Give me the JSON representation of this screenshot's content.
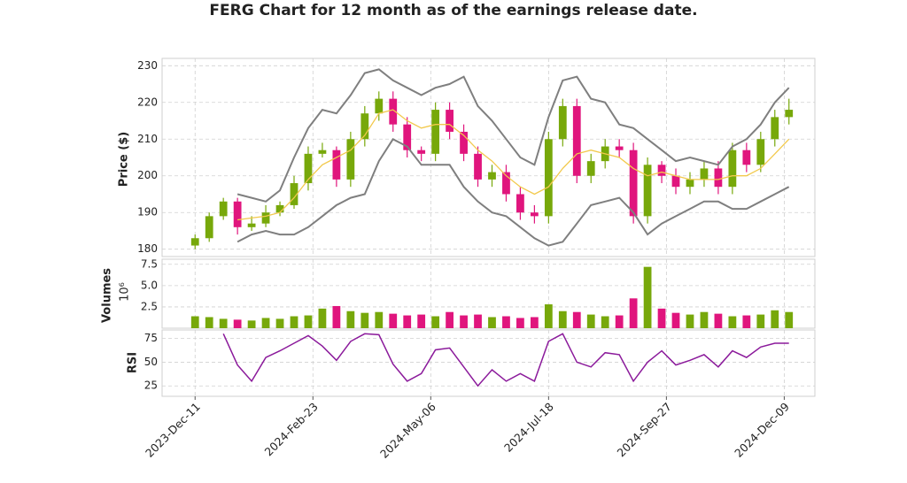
{
  "chart_data": {
    "type": "candlestick",
    "title": "FERG Chart for 12 month as of the earnings release date.",
    "ylabel": "Price ($)",
    "volume_label": "Volumes",
    "volume_multiplier": "10⁶",
    "rsi_label": "RSI",
    "up_color": "#77a80a",
    "down_color": "#e0157d",
    "ma_color": "#f2c94c",
    "band_color": "#7f7f7f",
    "rsi_color": "#8b1a9b",
    "grid": true,
    "x": [
      0,
      6,
      12,
      18,
      24,
      30,
      36,
      42,
      48,
      54,
      60,
      66,
      72,
      78,
      84,
      90,
      96,
      102,
      108,
      114,
      120,
      126,
      132,
      138,
      144,
      150,
      156,
      162,
      168,
      174,
      180,
      186,
      192,
      198,
      204,
      210,
      216,
      222,
      228,
      234,
      240,
      246,
      252
    ],
    "xlim": [
      -14,
      263
    ],
    "xticks": [
      {
        "value": 0,
        "label": "2023-Dec-11"
      },
      {
        "value": 50,
        "label": "2024-Feb-23"
      },
      {
        "value": 100,
        "label": "2024-May-06"
      },
      {
        "value": 150,
        "label": "2024-Jul-18"
      },
      {
        "value": 200,
        "label": "2024-Sep-27"
      },
      {
        "value": 250,
        "label": "2024-Dec-09"
      }
    ],
    "open": [
      181,
      183,
      189,
      193,
      186,
      187,
      190,
      192,
      198,
      206,
      207,
      199,
      210,
      217,
      221,
      214,
      207,
      206,
      218,
      212,
      206,
      199,
      201,
      195,
      190,
      189,
      210,
      219,
      200,
      204,
      208,
      207,
      189,
      203,
      200,
      197,
      199,
      202,
      197,
      207,
      203,
      210,
      216
    ],
    "high": [
      184,
      190,
      194,
      194,
      189,
      192,
      193,
      200,
      208,
      209,
      208,
      212,
      219,
      223,
      223,
      216,
      208,
      220,
      220,
      214,
      208,
      203,
      203,
      197,
      192,
      212,
      221,
      221,
      206,
      210,
      210,
      209,
      205,
      204,
      202,
      201,
      204,
      204,
      209,
      209,
      212,
      218,
      221
    ],
    "low": [
      180,
      182,
      188,
      184,
      185,
      186,
      189,
      191,
      196,
      205,
      197,
      197,
      208,
      215,
      212,
      205,
      204,
      204,
      210,
      204,
      197,
      197,
      193,
      188,
      187,
      187,
      208,
      198,
      198,
      202,
      205,
      187,
      187,
      198,
      195,
      195,
      197,
      195,
      195,
      201,
      201,
      208,
      214
    ],
    "close": [
      183,
      189,
      193,
      186,
      187,
      190,
      192,
      198,
      206,
      207,
      199,
      210,
      217,
      221,
      214,
      207,
      206,
      218,
      212,
      206,
      199,
      201,
      195,
      190,
      189,
      210,
      219,
      200,
      204,
      208,
      207,
      189,
      203,
      200,
      197,
      199,
      202,
      197,
      207,
      203,
      210,
      216,
      218
    ],
    "ma": [
      null,
      null,
      null,
      188,
      188.5,
      189,
      190,
      194,
      199,
      203,
      205,
      207,
      211,
      217,
      218,
      215,
      213,
      214,
      214,
      211,
      207,
      204,
      200,
      197,
      195,
      197,
      202,
      206,
      207,
      206,
      205,
      202,
      200,
      201,
      200,
      199,
      199,
      199,
      200,
      200,
      202,
      206,
      210
    ],
    "bb_upper": [
      null,
      null,
      null,
      195,
      194,
      193,
      196,
      205,
      213,
      218,
      217,
      222,
      228,
      229,
      226,
      224,
      222,
      224,
      225,
      227,
      219,
      215,
      210,
      205,
      203,
      216,
      226,
      227,
      221,
      220,
      214,
      213,
      210,
      207,
      204,
      205,
      204,
      203,
      208,
      210,
      214,
      220,
      224
    ],
    "bb_lower": [
      null,
      null,
      null,
      182,
      184,
      185,
      184,
      184,
      186,
      189,
      192,
      194,
      195,
      204,
      210,
      208,
      203,
      203,
      203,
      197,
      193,
      190,
      189,
      186,
      183,
      181,
      182,
      187,
      192,
      193,
      194,
      190,
      184,
      187,
      189,
      191,
      193,
      193,
      191,
      191,
      193,
      195,
      197
    ],
    "ylim": [
      178,
      232
    ],
    "yticks": [
      180,
      190,
      200,
      210,
      220,
      230
    ],
    "volume": [
      1.4,
      1.3,
      1.1,
      1.0,
      0.9,
      1.2,
      1.1,
      1.4,
      1.5,
      2.3,
      2.6,
      2.0,
      1.8,
      1.9,
      1.7,
      1.5,
      1.6,
      1.4,
      1.9,
      1.5,
      1.6,
      1.3,
      1.4,
      1.2,
      1.3,
      2.8,
      2.0,
      1.9,
      1.6,
      1.4,
      1.5,
      3.5,
      7.2,
      2.3,
      1.8,
      1.6,
      1.9,
      1.7,
      1.4,
      1.5,
      1.6,
      2.1,
      1.9
    ],
    "volume_ylim": [
      0,
      8.1
    ],
    "volume_yticks": [
      2.5,
      {
        "value": 5,
        "label": "5.0"
      },
      7.5
    ],
    "rsi": [
      null,
      null,
      80,
      47,
      30,
      55,
      62,
      70,
      78,
      67,
      52,
      72,
      80,
      79,
      48,
      30,
      38,
      63,
      65,
      45,
      25,
      42,
      30,
      38,
      30,
      72,
      80,
      50,
      45,
      60,
      58,
      30,
      50,
      62,
      47,
      52,
      58,
      45,
      62,
      55,
      66,
      70,
      70
    ],
    "rsi_ylim": [
      14,
      84
    ],
    "rsi_yticks": [
      25,
      50,
      75
    ]
  }
}
